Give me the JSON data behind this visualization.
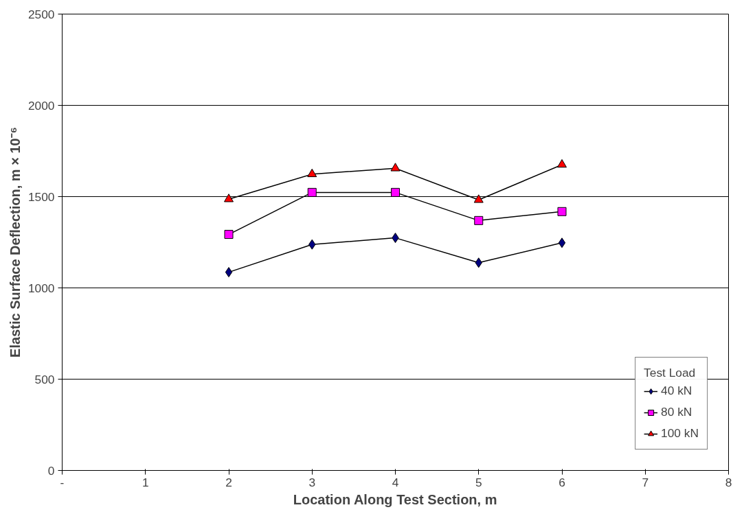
{
  "chart_data": {
    "type": "line",
    "xlabel": "Location Along Test Section, m",
    "ylabel": "Elastic Surface Deflection, m × 10⁻⁶",
    "legend_title": "Test Load",
    "x": [
      2,
      3,
      4,
      5,
      6
    ],
    "series": [
      {
        "name": "40 kN",
        "color": "#000080",
        "marker": "diamond",
        "values": [
          1086,
          1238,
          1274,
          1138,
          1247
        ]
      },
      {
        "name": "80 kN",
        "color": "#ff00ff",
        "marker": "square",
        "values": [
          1293,
          1523,
          1523,
          1369,
          1418
        ]
      },
      {
        "name": "100 kN",
        "color": "#ff0000",
        "marker": "triangle",
        "values": [
          1486,
          1623,
          1655,
          1482,
          1675
        ]
      }
    ],
    "xlim": [
      0,
      8
    ],
    "xticks": [
      {
        "value": 0,
        "label": "-"
      },
      1,
      2,
      3,
      4,
      5,
      6,
      7,
      8
    ],
    "ylim": [
      0,
      2500
    ],
    "yticks": [
      0,
      500,
      1000,
      1500,
      2000,
      2500
    ],
    "grid": "y",
    "legend": "bottom right",
    "line_style": "solid"
  }
}
